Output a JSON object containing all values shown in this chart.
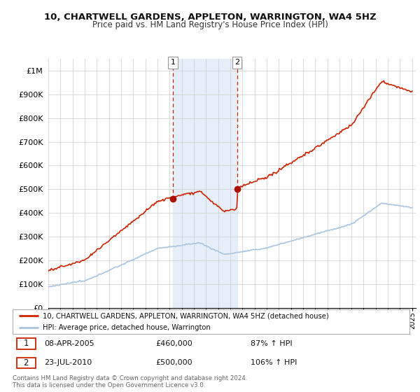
{
  "title": "10, CHARTWELL GARDENS, APPLETON, WARRINGTON, WA4 5HZ",
  "subtitle": "Price paid vs. HM Land Registry's House Price Index (HPI)",
  "ylim": [
    0,
    1050000
  ],
  "yticks": [
    0,
    100000,
    200000,
    300000,
    400000,
    500000,
    600000,
    700000,
    800000,
    900000,
    1000000
  ],
  "ytick_labels": [
    "£0",
    "£100K",
    "£200K",
    "£300K",
    "£400K",
    "£500K",
    "£600K",
    "£700K",
    "£800K",
    "£900K",
    "£1M"
  ],
  "hpi_color": "#a8c4e0",
  "price_color": "#cc2200",
  "marker_color": "#aa1100",
  "sale1_year": 2005.27,
  "sale1_price": 460000,
  "sale2_year": 2010.56,
  "sale2_price": 500000,
  "legend_line1": "10, CHARTWELL GARDENS, APPLETON, WARRINGTON, WA4 5HZ (detached house)",
  "legend_line2": "HPI: Average price, detached house, Warrington",
  "note1_num": "1",
  "note1_date": "08-APR-2005",
  "note1_price": "£460,000",
  "note1_hpi": "87% ↑ HPI",
  "note2_num": "2",
  "note2_date": "23-JUL-2010",
  "note2_price": "£500,000",
  "note2_hpi": "106% ↑ HPI",
  "footer": "Contains HM Land Registry data © Crown copyright and database right 2024.\nThis data is licensed under the Open Government Licence v3.0.",
  "bg_color": "#ffffff",
  "grid_color": "#cccccc",
  "highlight_shade": "#dce9f7",
  "xmin": 1995,
  "xmax": 2025.3
}
